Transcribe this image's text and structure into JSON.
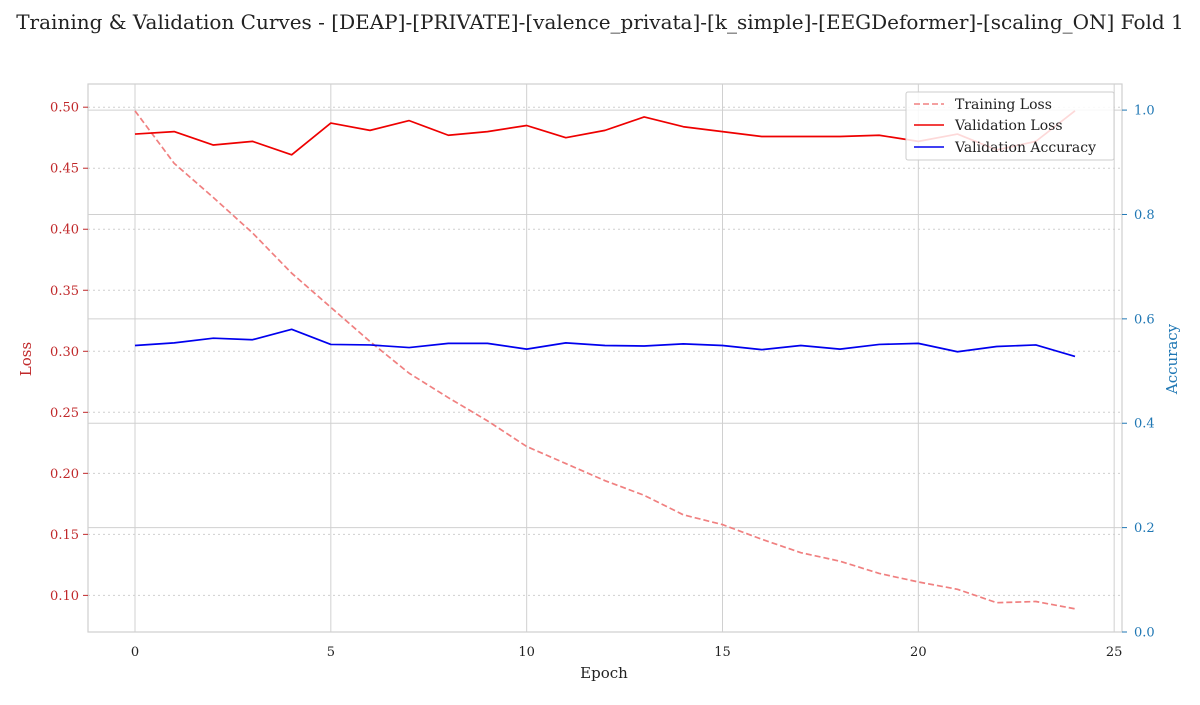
{
  "chart_data": {
    "type": "line",
    "title": "Training & Validation Curves - [DEAP]-[PRIVATE]-[valence_privata]-[k_simple]-[EEGDeformer]-[scaling_ON] Fold 1",
    "xlabel": "Epoch",
    "ylabel_left": "Loss",
    "ylabel_right": "Accuracy",
    "xlim": [
      -1.2,
      25.2
    ],
    "ylim_left": [
      0.07,
      0.519
    ],
    "ylim_right": [
      0.0,
      1.05
    ],
    "x_ticks": [
      0,
      5,
      10,
      15,
      20,
      25
    ],
    "y_ticks_left": [
      0.1,
      0.15,
      0.2,
      0.25,
      0.3,
      0.35,
      0.4,
      0.45,
      0.5
    ],
    "y_ticks_right": [
      0.0,
      0.2,
      0.4,
      0.6,
      0.8,
      1.0
    ],
    "grid": true,
    "legend_position": "top-right",
    "colors": {
      "training_loss": "#f08080",
      "validation_loss": "#ee0000",
      "validation_accuracy": "#0000ee",
      "left_axis": "#c0282a",
      "right_axis": "#1f77b4"
    },
    "x": [
      0,
      1,
      2,
      3,
      4,
      5,
      6,
      7,
      8,
      9,
      10,
      11,
      12,
      13,
      14,
      15,
      16,
      17,
      18,
      19,
      20,
      21,
      22,
      23,
      24
    ],
    "series": [
      {
        "name": "Training Loss",
        "axis": "left",
        "style": "dashed",
        "values": [
          0.497,
          0.454,
          0.426,
          0.397,
          0.364,
          0.336,
          0.308,
          0.282,
          0.262,
          0.243,
          0.222,
          0.208,
          0.194,
          0.182,
          0.166,
          0.158,
          0.146,
          0.135,
          0.128,
          0.118,
          0.111,
          0.105,
          0.094,
          0.095,
          0.089
        ]
      },
      {
        "name": "Validation Loss",
        "axis": "left",
        "style": "solid",
        "values": [
          0.478,
          0.48,
          0.469,
          0.472,
          0.461,
          0.487,
          0.481,
          0.489,
          0.477,
          0.48,
          0.485,
          0.475,
          0.481,
          0.492,
          0.484,
          0.48,
          0.476,
          0.476,
          0.476,
          0.477,
          0.472,
          0.478,
          0.465,
          0.472,
          0.497
        ]
      },
      {
        "name": "Validation Accuracy",
        "axis": "right",
        "style": "solid",
        "values": [
          0.549,
          0.554,
          0.563,
          0.56,
          0.58,
          0.551,
          0.55,
          0.545,
          0.553,
          0.553,
          0.542,
          0.554,
          0.549,
          0.548,
          0.552,
          0.549,
          0.541,
          0.549,
          0.542,
          0.551,
          0.553,
          0.537,
          0.547,
          0.55,
          0.528
        ]
      }
    ]
  }
}
